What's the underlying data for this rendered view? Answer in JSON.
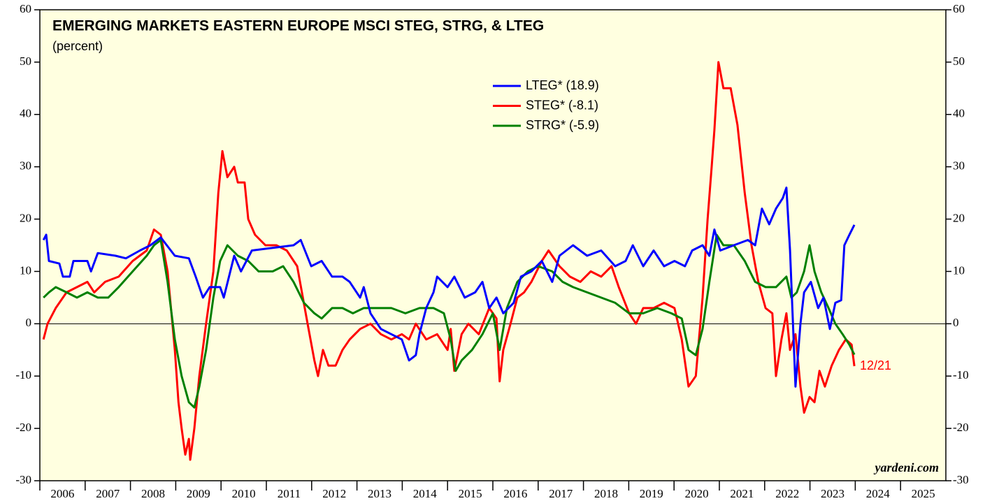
{
  "chart_data": {
    "type": "line",
    "title": "EMERGING MARKETS EASTERN EUROPE MSCI STEG, STRG, & LTEG",
    "subtitle": "(percent)",
    "annotations": [
      {
        "text": "12/21",
        "color": "#ff0000"
      },
      {
        "text": "yardeni.com",
        "color": "#000000"
      }
    ],
    "xlim": [
      2006,
      2026
    ],
    "xticks": [
      2006,
      2007,
      2008,
      2009,
      2010,
      2011,
      2012,
      2013,
      2014,
      2015,
      2016,
      2017,
      2018,
      2019,
      2020,
      2021,
      2022,
      2023,
      2024,
      2025
    ],
    "ylim": [
      -30,
      60
    ],
    "yticks": [
      -30,
      -20,
      -10,
      0,
      10,
      20,
      30,
      40,
      50,
      60
    ],
    "reference_line": 0,
    "background": "#ffffe0",
    "series": [
      {
        "name": "LTEG* (18.9)",
        "color": "#0000ff",
        "x": [
          2006.08,
          2006.14,
          2006.2,
          2006.43,
          2006.51,
          2006.66,
          2006.74,
          2007.05,
          2007.13,
          2007.28,
          2007.67,
          2007.9,
          2008.21,
          2008.44,
          2008.67,
          2008.98,
          2009.29,
          2009.44,
          2009.6,
          2009.75,
          2009.98,
          2010.06,
          2010.29,
          2010.44,
          2010.68,
          2011.14,
          2011.6,
          2011.76,
          2011.99,
          2012.22,
          2012.45,
          2012.68,
          2012.84,
          2013.07,
          2013.15,
          2013.3,
          2013.53,
          2013.76,
          2013.99,
          2014.15,
          2014.3,
          2014.38,
          2014.53,
          2014.69,
          2014.77,
          2015.0,
          2015.15,
          2015.38,
          2015.61,
          2015.77,
          2015.92,
          2016.08,
          2016.23,
          2016.46,
          2016.62,
          2016.85,
          2017.08,
          2017.31,
          2017.47,
          2017.77,
          2018.08,
          2018.39,
          2018.7,
          2018.93,
          2019.09,
          2019.32,
          2019.55,
          2019.78,
          2020.01,
          2020.24,
          2020.4,
          2020.63,
          2020.78,
          2020.89,
          2021.02,
          2021.32,
          2021.63,
          2021.79,
          2021.94,
          2022.1,
          2022.25,
          2022.4,
          2022.48,
          2022.56,
          2022.68,
          2022.79,
          2022.87,
          2023.02,
          2023.18,
          2023.3,
          2023.44,
          2023.56,
          2023.69,
          2023.76,
          2023.87,
          2023.98
        ],
        "values": [
          16,
          17,
          12,
          11.5,
          9,
          9,
          12,
          12,
          10,
          13.5,
          13,
          12.5,
          14,
          15,
          16.5,
          13,
          12.5,
          9,
          5,
          7,
          7,
          5,
          13,
          10,
          14,
          14.5,
          15,
          16,
          11,
          12,
          9,
          9,
          8,
          5,
          7,
          2,
          -1,
          -2,
          -3,
          -7,
          -6,
          -2,
          3,
          6,
          9,
          7,
          9,
          5,
          6,
          8,
          3,
          5,
          2,
          4,
          9,
          10,
          12,
          8,
          13,
          15,
          13,
          14,
          11,
          12,
          15,
          11,
          14,
          11,
          12,
          11,
          14,
          15,
          13,
          18,
          14,
          15,
          16,
          15,
          22,
          19,
          22,
          24,
          26,
          14,
          -12,
          0,
          6,
          8,
          3,
          5,
          -1,
          4,
          4.5,
          15,
          17,
          18.9
        ]
      },
      {
        "name": "STEG* (-8.1)",
        "color": "#ff0000",
        "x": [
          2006.08,
          2006.17,
          2006.35,
          2006.59,
          2006.82,
          2007.05,
          2007.2,
          2007.44,
          2007.74,
          2008.05,
          2008.36,
          2008.52,
          2008.67,
          2008.82,
          2008.98,
          2009.06,
          2009.13,
          2009.21,
          2009.29,
          2009.32,
          2009.41,
          2009.52,
          2009.67,
          2009.83,
          2009.94,
          2010.03,
          2010.14,
          2010.29,
          2010.37,
          2010.52,
          2010.6,
          2010.75,
          2010.98,
          2011.22,
          2011.45,
          2011.68,
          2011.91,
          2012.06,
          2012.14,
          2012.25,
          2012.37,
          2012.53,
          2012.68,
          2012.84,
          2013.07,
          2013.3,
          2013.53,
          2013.76,
          2013.99,
          2014.15,
          2014.3,
          2014.53,
          2014.77,
          2015.0,
          2015.07,
          2015.15,
          2015.31,
          2015.46,
          2015.69,
          2015.92,
          2016.08,
          2016.15,
          2016.23,
          2016.39,
          2016.54,
          2016.69,
          2016.85,
          2017.08,
          2017.23,
          2017.47,
          2017.7,
          2017.93,
          2018.16,
          2018.39,
          2018.62,
          2018.78,
          2019.01,
          2019.16,
          2019.32,
          2019.55,
          2019.78,
          2020.01,
          2020.17,
          2020.32,
          2020.48,
          2020.63,
          2020.74,
          2020.83,
          2020.89,
          2020.98,
          2021.09,
          2021.25,
          2021.4,
          2021.56,
          2021.71,
          2021.86,
          2022.02,
          2022.17,
          2022.25,
          2022.37,
          2022.48,
          2022.56,
          2022.68,
          2022.79,
          2022.87,
          2022.99,
          2023.1,
          2023.21,
          2023.33,
          2023.48,
          2023.64,
          2023.79,
          2023.92,
          2023.98
        ],
        "values": [
          -3,
          0,
          3,
          6,
          7,
          8,
          6,
          8,
          9,
          12,
          14,
          18,
          17,
          10,
          -5,
          -15,
          -20,
          -25,
          -22,
          -26,
          -20,
          -10,
          0,
          10,
          25,
          33,
          28,
          30,
          27,
          27,
          20,
          17,
          15,
          15,
          14,
          11,
          0,
          -7,
          -10,
          -5,
          -8,
          -8,
          -5,
          -3,
          -1,
          0,
          -2,
          -3,
          -2,
          -3,
          0,
          -3,
          -2,
          -5,
          -1,
          -9,
          -2,
          0,
          -2,
          3,
          1,
          -11,
          -5,
          0,
          5,
          6,
          8,
          12,
          14,
          11,
          9,
          8,
          10,
          9,
          11,
          7,
          2,
          0,
          3,
          3,
          4,
          3,
          -3,
          -12,
          -10,
          5,
          20,
          30,
          37,
          50,
          45,
          45,
          38,
          25,
          15,
          8,
          3,
          2,
          -10,
          -3,
          2,
          -5,
          -2,
          -12,
          -17,
          -14,
          -15,
          -9,
          -12,
          -8,
          -5,
          -3,
          -4,
          -8.1
        ]
      },
      {
        "name": "STRG* (-5.9)",
        "color": "#008000",
        "x": [
          2006.08,
          2006.2,
          2006.35,
          2006.59,
          2006.82,
          2007.05,
          2007.28,
          2007.51,
          2007.74,
          2008.05,
          2008.36,
          2008.52,
          2008.67,
          2008.82,
          2008.98,
          2009.13,
          2009.29,
          2009.41,
          2009.52,
          2009.67,
          2009.83,
          2009.98,
          2010.14,
          2010.37,
          2010.6,
          2010.83,
          2011.14,
          2011.37,
          2011.6,
          2011.83,
          2012.06,
          2012.22,
          2012.45,
          2012.68,
          2012.91,
          2013.15,
          2013.45,
          2013.76,
          2014.07,
          2014.38,
          2014.69,
          2014.92,
          2015.07,
          2015.18,
          2015.31,
          2015.54,
          2015.77,
          2016.0,
          2016.15,
          2016.31,
          2016.54,
          2016.77,
          2017.0,
          2017.31,
          2017.54,
          2017.77,
          2018.08,
          2018.39,
          2018.7,
          2019.01,
          2019.32,
          2019.63,
          2019.94,
          2020.17,
          2020.32,
          2020.48,
          2020.63,
          2020.78,
          2020.94,
          2021.09,
          2021.32,
          2021.56,
          2021.79,
          2022.02,
          2022.25,
          2022.48,
          2022.59,
          2022.71,
          2022.87,
          2022.99,
          2023.1,
          2023.25,
          2023.41,
          2023.56,
          2023.72,
          2023.87,
          2023.98
        ],
        "values": [
          5,
          6,
          7,
          6,
          5,
          6,
          5,
          5,
          7,
          10,
          13,
          15,
          16,
          8,
          -3,
          -10,
          -15,
          -16,
          -12,
          -5,
          5,
          12,
          15,
          13,
          12,
          10,
          10,
          11,
          8,
          4,
          2,
          1,
          3,
          3,
          2,
          3,
          3,
          3,
          2,
          3,
          3,
          2,
          -3,
          -9,
          -7,
          -5,
          -2,
          2,
          -5,
          3,
          8,
          10,
          11,
          10,
          8,
          7,
          6,
          5,
          4,
          2,
          2,
          3,
          2,
          1,
          -5,
          -6,
          -1,
          8,
          17,
          15,
          15,
          12,
          8,
          7,
          7,
          9,
          5,
          6,
          10,
          15,
          10,
          6,
          3,
          0,
          -2,
          -4,
          -5.9
        ]
      }
    ]
  }
}
